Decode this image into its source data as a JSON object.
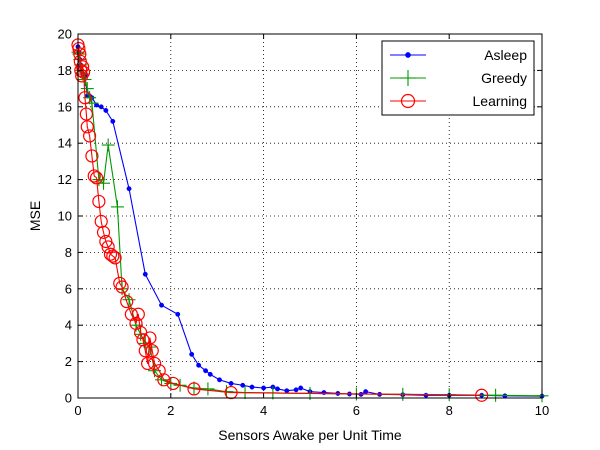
{
  "chart_data": {
    "type": "line",
    "title": "",
    "xlabel": "Sensors Awake per Unit Time",
    "ylabel": "MSE",
    "xlim": [
      0,
      10
    ],
    "ylim": [
      0,
      20
    ],
    "xticks": [
      0,
      2,
      4,
      6,
      8,
      10
    ],
    "yticks": [
      0,
      2,
      4,
      6,
      8,
      10,
      12,
      14,
      16,
      18,
      20
    ],
    "grid": true,
    "legend_position": "top-right",
    "colors": {
      "Asleep": "#0000ff",
      "Greedy": "#009900",
      "Learning": "#ff0000"
    },
    "series": [
      {
        "name": "Asleep",
        "marker": "dot",
        "x": [
          0.0,
          0.02,
          0.04,
          0.06,
          0.08,
          0.1,
          0.15,
          0.2,
          0.25,
          0.3,
          0.4,
          0.5,
          0.6,
          0.75,
          1.1,
          1.45,
          1.8,
          2.15,
          2.45,
          2.6,
          2.75,
          2.85,
          3.05,
          3.3,
          3.55,
          3.75,
          4.0,
          4.2,
          4.3,
          4.5,
          4.7,
          4.8,
          5.0,
          5.3,
          5.6,
          5.85,
          6.1,
          6.2,
          6.5,
          7.0,
          7.5,
          8.0,
          8.7,
          9.2,
          10.0
        ],
        "y": [
          19.3,
          19.0,
          18.6,
          18.3,
          18.0,
          17.8,
          17.7,
          16.6,
          16.6,
          16.5,
          16.1,
          16.0,
          15.8,
          15.2,
          11.5,
          6.8,
          5.1,
          4.6,
          2.4,
          1.8,
          1.5,
          1.3,
          1.0,
          0.8,
          0.7,
          0.6,
          0.55,
          0.6,
          0.5,
          0.4,
          0.45,
          0.55,
          0.35,
          0.3,
          0.25,
          0.22,
          0.2,
          0.35,
          0.2,
          0.18,
          0.15,
          0.15,
          0.15,
          0.12,
          0.1
        ]
      },
      {
        "name": "Greedy",
        "marker": "plus",
        "x": [
          0.0,
          0.02,
          0.04,
          0.06,
          0.08,
          0.1,
          0.15,
          0.2,
          0.25,
          0.3,
          0.45,
          0.55,
          0.65,
          0.85,
          0.95,
          1.1,
          1.25,
          1.35,
          1.45,
          1.55,
          1.65,
          1.8,
          2.0,
          2.2,
          2.5,
          2.8,
          3.2,
          3.6,
          4.2,
          5.0,
          6.0,
          7.0,
          8.0,
          9.0,
          10.0
        ],
        "y": [
          19.0,
          18.9,
          18.6,
          18.3,
          18.0,
          17.8,
          17.5,
          17.0,
          16.5,
          16.2,
          12.0,
          11.8,
          13.9,
          10.5,
          6.0,
          5.4,
          4.0,
          3.5,
          3.0,
          2.8,
          1.5,
          1.0,
          0.8,
          0.7,
          0.55,
          0.5,
          0.35,
          0.3,
          0.28,
          0.25,
          0.22,
          0.2,
          0.18,
          0.15,
          0.12
        ]
      },
      {
        "name": "Learning",
        "marker": "circle",
        "x": [
          0.0,
          0.02,
          0.04,
          0.05,
          0.06,
          0.08,
          0.1,
          0.12,
          0.15,
          0.18,
          0.2,
          0.25,
          0.3,
          0.35,
          0.4,
          0.45,
          0.5,
          0.55,
          0.6,
          0.65,
          0.7,
          0.75,
          0.8,
          0.9,
          0.95,
          1.05,
          1.15,
          1.25,
          1.3,
          1.35,
          1.4,
          1.45,
          1.5,
          1.55,
          1.6,
          1.65,
          1.75,
          1.85,
          2.05,
          2.5,
          3.3,
          8.7
        ],
        "y": [
          19.4,
          19.2,
          18.9,
          18.5,
          18.0,
          17.7,
          18.2,
          17.9,
          16.5,
          15.6,
          14.9,
          14.4,
          13.3,
          12.2,
          12.1,
          10.8,
          9.7,
          9.1,
          8.6,
          8.3,
          7.9,
          7.8,
          7.7,
          6.3,
          6.1,
          5.3,
          4.6,
          4.1,
          4.6,
          3.6,
          3.2,
          2.6,
          1.9,
          3.3,
          2.6,
          1.9,
          1.5,
          1.0,
          0.8,
          0.5,
          0.3,
          0.15
        ]
      }
    ]
  }
}
